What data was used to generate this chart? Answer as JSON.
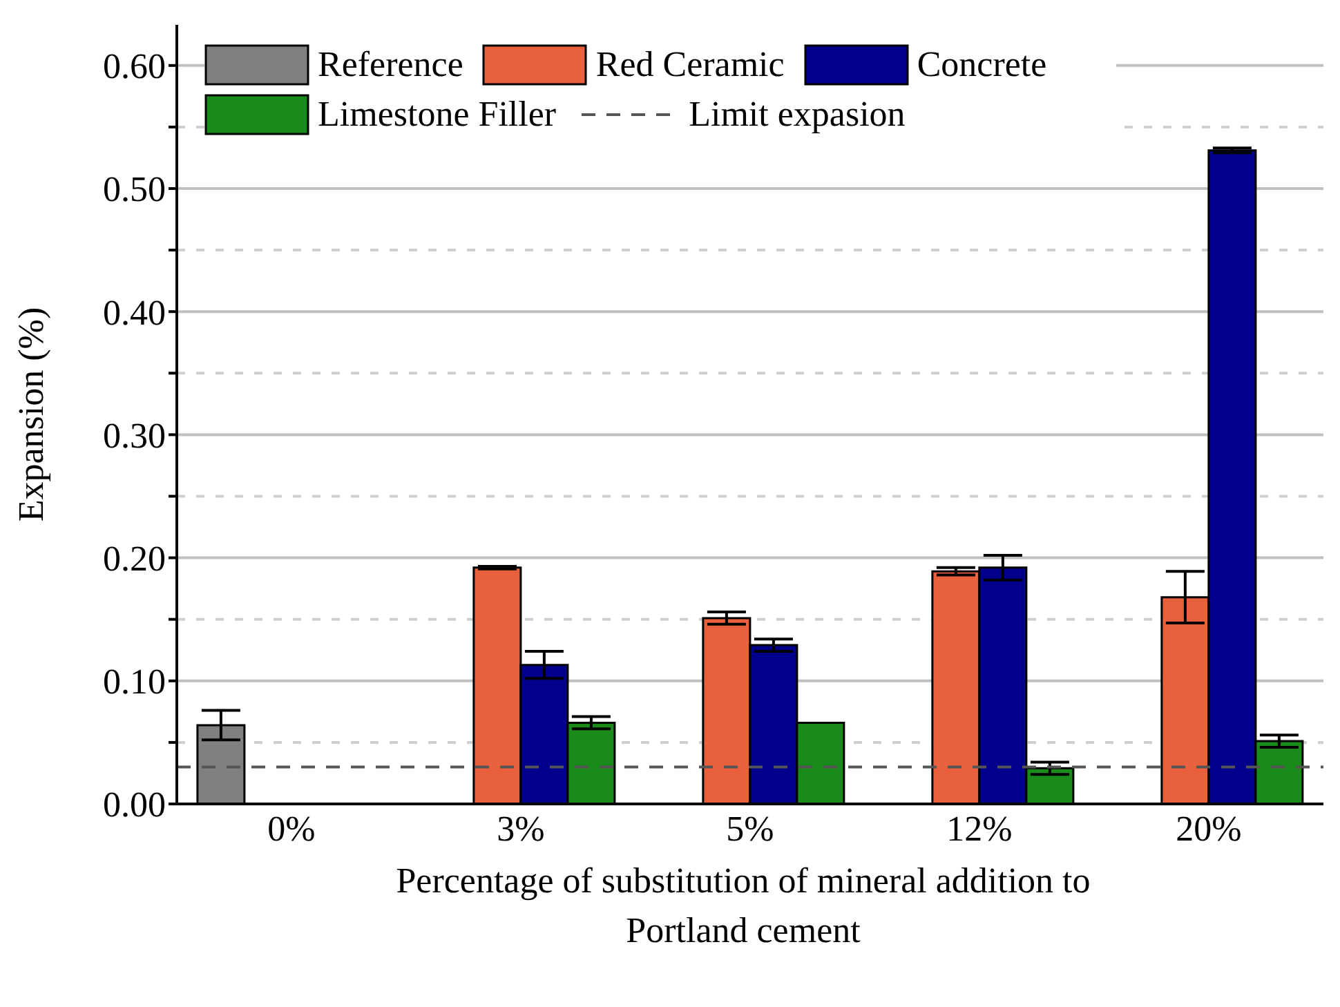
{
  "chart_data": {
    "type": "bar",
    "xlabel": "Percentage of substitution of mineral addition to Portland cement",
    "ylabel": "Expansion (%)",
    "categories": [
      "0%",
      "3%",
      "5%",
      "12%",
      "20%"
    ],
    "series": [
      {
        "name": "Reference",
        "color": "#808080",
        "values": [
          0.064,
          null,
          null,
          null,
          null
        ],
        "errors": [
          0.012,
          null,
          null,
          null,
          null
        ]
      },
      {
        "name": "Red Ceramic",
        "color": "#e8603c",
        "values": [
          null,
          0.192,
          0.151,
          0.189,
          0.168
        ],
        "errors": [
          null,
          0.001,
          0.005,
          0.003,
          0.021
        ]
      },
      {
        "name": "Concrete",
        "color": "#00008b",
        "values": [
          null,
          0.113,
          0.129,
          0.192,
          0.531
        ],
        "errors": [
          null,
          0.011,
          0.005,
          0.01,
          0.002
        ]
      },
      {
        "name": "Limestone Filler",
        "color": "#1a8a1a",
        "values": [
          null,
          0.066,
          0.066,
          0.029,
          0.051
        ],
        "errors": [
          null,
          0.005,
          null,
          0.005,
          0.005
        ]
      }
    ],
    "ylim": [
      0,
      0.633
    ],
    "yticks": [
      {
        "value": 0,
        "label": "0.00"
      },
      {
        "value": 0.05,
        "label": null
      },
      {
        "value": 0.1,
        "label": "0.10"
      },
      {
        "value": 0.15,
        "label": null
      },
      {
        "value": 0.2,
        "label": "0.20"
      },
      {
        "value": 0.25,
        "label": null
      },
      {
        "value": 0.3,
        "label": "0.30"
      },
      {
        "value": 0.35,
        "label": null
      },
      {
        "value": 0.4,
        "label": "0.40"
      },
      {
        "value": 0.45,
        "label": null
      },
      {
        "value": 0.5,
        "label": "0.50"
      },
      {
        "value": 0.55,
        "label": null
      },
      {
        "value": 0.6,
        "label": "0.60"
      }
    ],
    "grid": "y",
    "legend": "top",
    "ref_lines": [
      {
        "axis": "y",
        "value": 0.03,
        "label": "Limit expasion",
        "color": "#555555",
        "line_style": "dashed"
      }
    ]
  }
}
